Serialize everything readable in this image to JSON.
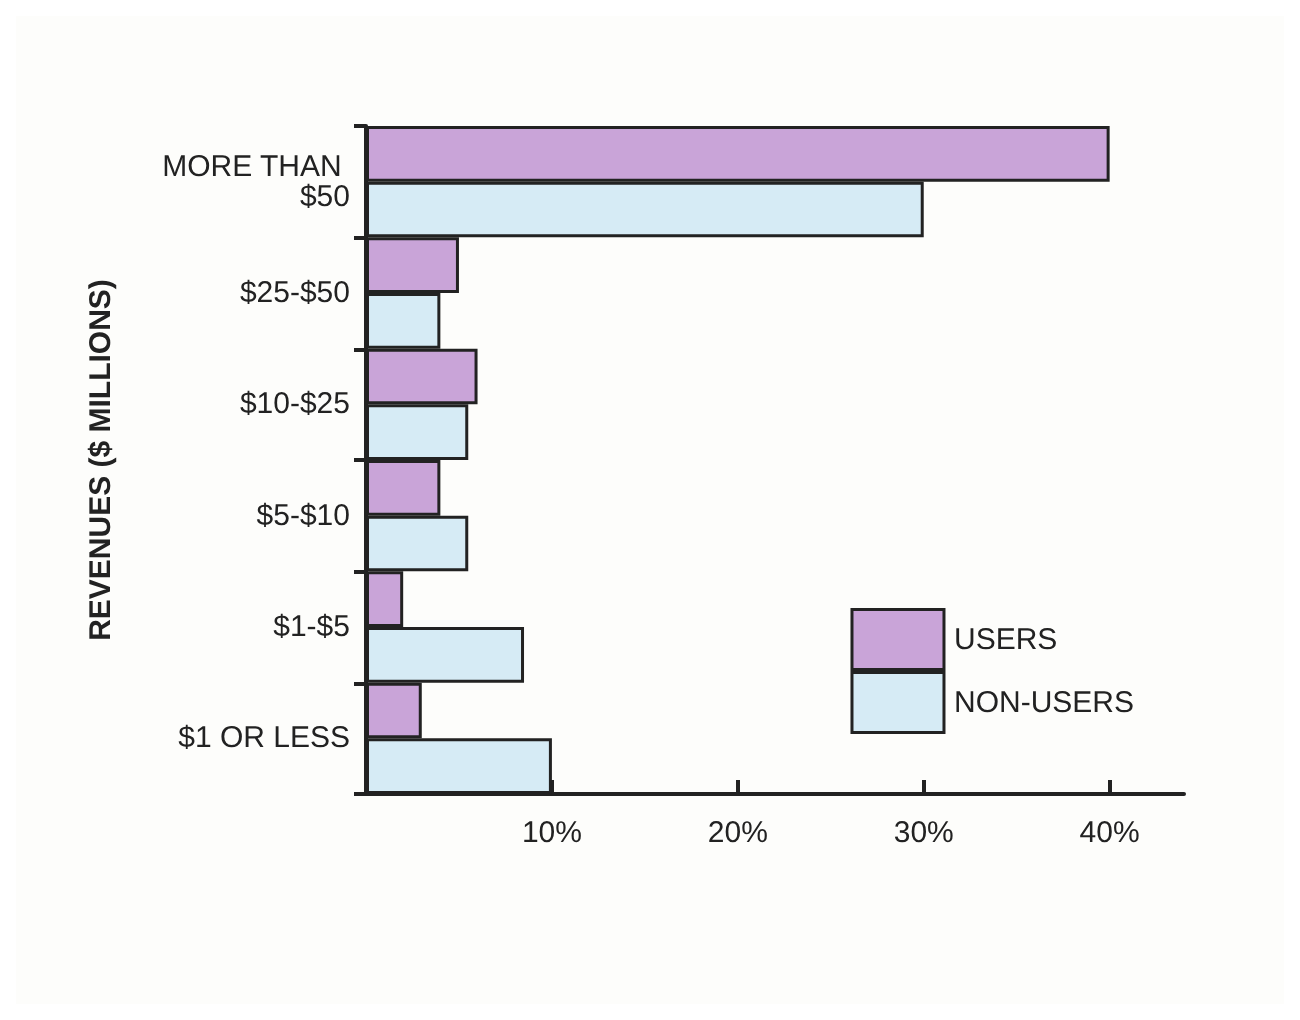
{
  "chart_data": {
    "type": "bar",
    "orientation": "horizontal",
    "ylabel": "REVENUES ($ MILLIONS)",
    "categories": [
      "MORE THAN $50",
      "$25-$50",
      "$10-$25",
      "$5-$10",
      "$1-$5",
      "$1 OR LESS"
    ],
    "series": [
      {
        "name": "USERS",
        "color": "#c9a4d8",
        "values": [
          40,
          5,
          6,
          4,
          2,
          3
        ]
      },
      {
        "name": "NON-USERS",
        "color": "#d6ebf5",
        "values": [
          30,
          4,
          5.5,
          5.5,
          8.5,
          10
        ]
      }
    ],
    "xlim": [
      0,
      44
    ],
    "xticks": [
      {
        "value": 10,
        "label": "10%"
      },
      {
        "value": 20,
        "label": "20%"
      },
      {
        "value": 30,
        "label": "30%"
      },
      {
        "value": 40,
        "label": "40%"
      }
    ],
    "grid": false,
    "legend": "bottom right"
  }
}
